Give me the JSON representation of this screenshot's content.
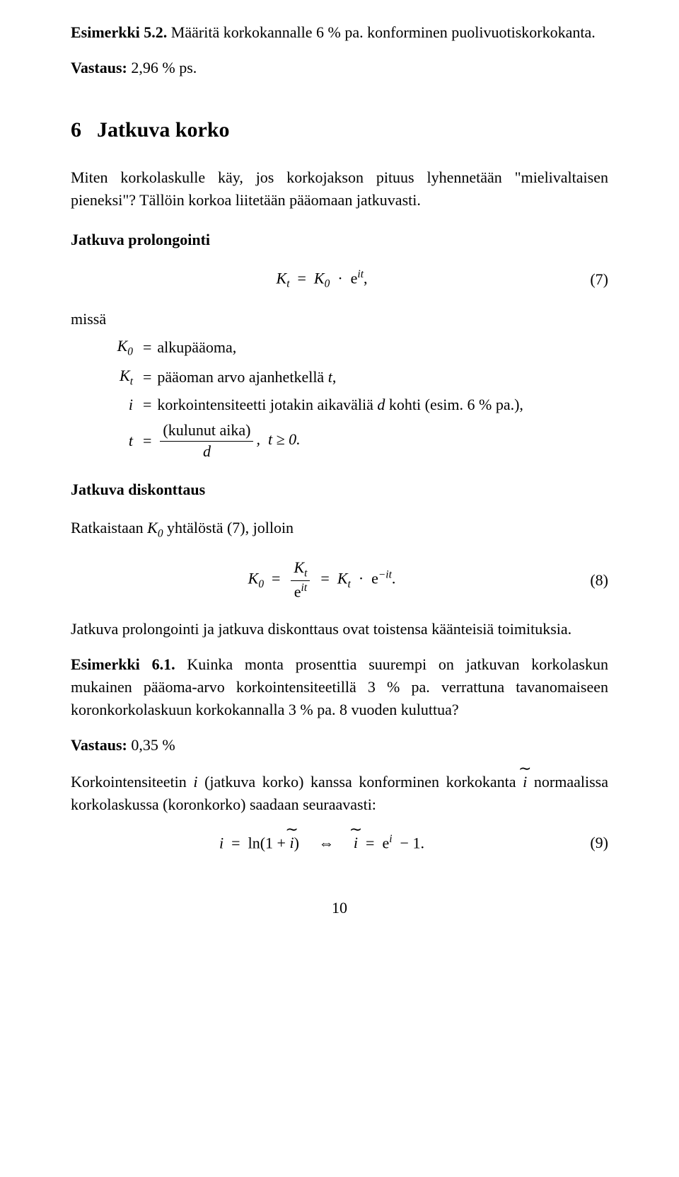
{
  "ex52_label": "Esimerkki 5.2.",
  "ex52_text": " Määritä korkokannalle 6 % pa. konforminen puolivuotiskorkokanta.",
  "ans52_label": "Vastaus:",
  "ans52_text": " 2,96 % ps.",
  "sec6_num": "6",
  "sec6_title": "Jatkuva korko",
  "intro6": "Miten korkolaskulle käy, jos korkojakson pituus lyhennetään \"mielivaltaisen pieneksi\"? Tällöin korkoa liitetään pääomaan jatkuvasti.",
  "sub_prolong": "Jatkuva prolongointi",
  "eq7_lhs_K": "K",
  "eq7_lhs_sub": "t",
  "eq7_rhs_K": "K",
  "eq7_rhs_sub": "0",
  "eq7_e": "e",
  "eq7_exp_i": "i",
  "eq7_exp_t": "t",
  "eq7_label": "(7)",
  "missa": "missä",
  "def1_lhs": "K",
  "def1_sub": "0",
  "def1_rhs": "alkupääoma,",
  "def2_lhs": "K",
  "def2_sub": "t",
  "def2_rhs_a": "pääoman arvo ajanhetkellä ",
  "def2_rhs_t": "t",
  "def2_rhs_b": ",",
  "def3_lhs": "i",
  "def3_rhs_a": "korkointensiteetti jotakin aikaväliä ",
  "def3_rhs_d": "d",
  "def3_rhs_b": " kohti (esim. 6 % pa.),",
  "def4_lhs": "t",
  "def4_num": "(kulunut aika)",
  "def4_den": "d",
  "def4_tail": ",  t ≥ 0.",
  "sub_disk": "Jatkuva diskonttaus",
  "ratk_a": "Ratkaistaan ",
  "ratk_K": "K",
  "ratk_sub": "0",
  "ratk_b": " yhtälöstä (7), jolloin",
  "eq8_label": "(8)",
  "eq8_Kt": "K",
  "eq8_t": "t",
  "eq8_i": "i",
  "after8": "Jatkuva prolongointi ja jatkuva diskonttaus ovat toistensa käänteisiä toimituksia.",
  "ex61_label": "Esimerkki 6.1.",
  "ex61_text": " Kuinka monta prosenttia suurempi on jatkuvan korkolaskun mukainen pääoma-arvo korkointensiteetillä 3 % pa. verrattuna tavanomaiseen koronkorkolaskuun korkokannalla 3 % pa. 8 vuoden kuluttua?",
  "ans61_label": "Vastaus:",
  "ans61_text": " 0,35 %",
  "konf_a": "Korkointensiteetin ",
  "konf_i": "i",
  "konf_b": " (jatkuva korko) kanssa konforminen korkokanta ",
  "konf_c": " normaalissa korkolaskussa (koronkorko) saadaan seuraavasti:",
  "eq9_label": "(9)",
  "eq9_ln": "ln",
  "eq9_iff": "⇔",
  "pagenum": "10",
  "eq_symbol": "=",
  "dot": "·",
  "comma": ",",
  "plus": "+",
  "minus": "−",
  "one": "1",
  "open_paren": "(",
  "close_paren": ")",
  "period": ".",
  "tilde": "∼",
  "e": "e"
}
